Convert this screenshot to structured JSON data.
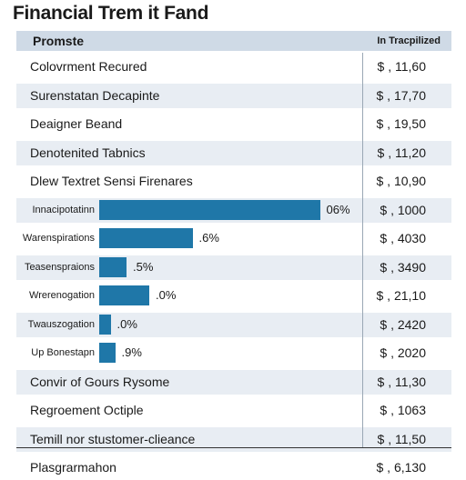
{
  "chart_data": {
    "type": "table",
    "title": "Financial Trem it Fand",
    "header": {
      "left": "Promste",
      "right": "In Tracpilized"
    },
    "rows": [
      {
        "label": "Colovrment Recured",
        "value": "$ , 11,60"
      },
      {
        "label": "Surenstatan Decapinte",
        "value": "$ , 17,70"
      },
      {
        "label": "Deaigner Beand",
        "value": "$ , 19,50"
      },
      {
        "label": "Denotenited Tabnics",
        "value": "$ , 11,20"
      },
      {
        "label": "Dlew Textret Sensi Firenares",
        "value": "$ , 10,90"
      },
      {
        "label": "Innacipotatinn",
        "value": "$ , 1000",
        "bar": 0.97,
        "pct": "06%"
      },
      {
        "label": "Warenspirations",
        "value": "$ , 4030",
        "bar": 0.41,
        "pct": ".6%"
      },
      {
        "label": "Teasenspraions",
        "value": "$ , 3490",
        "bar": 0.12,
        "pct": ".5%"
      },
      {
        "label": "Wrerenogation",
        "value": "$ , 21,10",
        "bar": 0.22,
        "pct": ".0%"
      },
      {
        "label": "Twauszogation",
        "value": "$ , 2420",
        "bar": 0.05,
        "pct": ".0%"
      },
      {
        "label": "Up Bonestapn",
        "value": "$ , 2020",
        "bar": 0.07,
        "pct": ".9%"
      },
      {
        "label": "Convir of Gours Rysome",
        "value": "$ , 11,30"
      },
      {
        "label": "Regroement Octiple",
        "value": "$ , 1063"
      },
      {
        "label": "Temill nor stustomer-clieance",
        "value": "$ , 11,50"
      },
      {
        "label": "Plasgrarmahon",
        "value": "$ , 6,130"
      }
    ]
  },
  "colors": {
    "bar": "#1f77a8",
    "header": "#cfdae6",
    "shade": "#e8edf3"
  }
}
